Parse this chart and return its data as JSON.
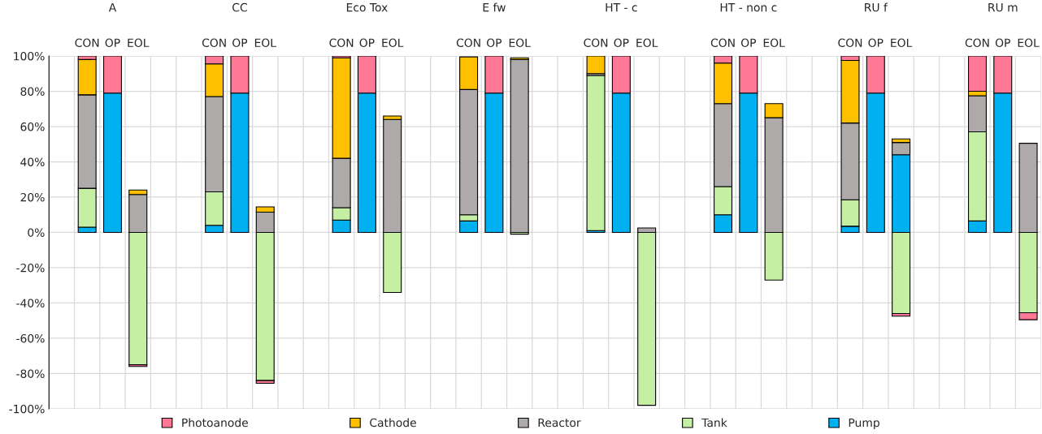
{
  "chart_data": {
    "type": "bar",
    "stacked": true,
    "categories": [
      null,
      "CON",
      "OP",
      "EOL",
      null,
      null,
      "CON",
      "OP",
      "EOL",
      null,
      null,
      "CON",
      "OP",
      "EOL",
      null,
      null,
      "CON",
      "OP",
      "EOL",
      null,
      null,
      "CON",
      "OP",
      "EOL",
      null,
      null,
      "CON",
      "OP",
      "EOL",
      null,
      null,
      "CON",
      "OP",
      "EOL",
      null,
      null,
      "CON",
      "OP",
      "EOL"
    ],
    "annotations": [
      "A",
      "CC",
      "Eco Tox",
      "E fw",
      "HT - c",
      "HT - non c",
      "RU f",
      "RU m"
    ],
    "ylim": [
      -100,
      100
    ],
    "yticks": [
      {
        "value": -100,
        "label": "-100%"
      },
      {
        "value": -80,
        "label": "-80%"
      },
      {
        "value": -60,
        "label": "-60%"
      },
      {
        "value": -40,
        "label": "-40%"
      },
      {
        "value": -20,
        "label": "-20%"
      },
      {
        "value": 0,
        "label": "0%"
      },
      {
        "value": 20,
        "label": "20%"
      },
      {
        "value": 40,
        "label": "40%"
      },
      {
        "value": 60,
        "label": "60%"
      },
      {
        "value": 80,
        "label": "80%"
      },
      {
        "value": 100,
        "label": "100%"
      }
    ],
    "grid": true,
    "legend": "bottom",
    "series": [
      {
        "name": "Pump",
        "color": "#00b0f0",
        "values": [
          null,
          3,
          79,
          null,
          null,
          null,
          4,
          79,
          null,
          null,
          null,
          7,
          79,
          null,
          null,
          null,
          6.5,
          79,
          null,
          null,
          null,
          1,
          79,
          null,
          null,
          null,
          10,
          79,
          null,
          null,
          null,
          3.5,
          79,
          44,
          null,
          null,
          6.5,
          79,
          null
        ]
      },
      {
        "name": "Tank",
        "color": "#c5f0a4",
        "values": [
          null,
          22,
          null,
          -75,
          null,
          null,
          19,
          null,
          -84,
          null,
          null,
          7,
          null,
          -34,
          null,
          null,
          3.5,
          null,
          -1,
          null,
          null,
          88,
          null,
          -98,
          null,
          null,
          16,
          null,
          -27,
          null,
          null,
          15,
          null,
          -46,
          null,
          null,
          50.5,
          null,
          -45.5
        ]
      },
      {
        "name": "Reactor",
        "color": "#aeaaaa",
        "values": [
          null,
          53,
          null,
          21.5,
          null,
          null,
          54,
          null,
          11.5,
          null,
          null,
          28,
          null,
          64,
          null,
          null,
          71,
          null,
          98,
          null,
          null,
          1,
          null,
          2.5,
          null,
          null,
          47,
          null,
          65,
          null,
          null,
          43.5,
          null,
          7,
          null,
          null,
          20.5,
          null,
          50.5
        ]
      },
      {
        "name": "Cathode",
        "color": "#ffc000",
        "values": [
          null,
          20,
          null,
          2.5,
          null,
          null,
          18.5,
          null,
          3,
          null,
          null,
          57,
          null,
          2,
          null,
          null,
          18.5,
          null,
          1,
          null,
          null,
          10,
          null,
          null,
          null,
          null,
          23,
          null,
          8,
          null,
          null,
          35.5,
          null,
          2,
          null,
          null,
          2.5,
          null,
          null
        ]
      },
      {
        "name": "Photoanode",
        "color": "#ff7896",
        "values": [
          null,
          2,
          21,
          -1,
          null,
          null,
          4.5,
          21,
          -1.5,
          null,
          null,
          1,
          21,
          null,
          null,
          null,
          null,
          21,
          null,
          null,
          null,
          null,
          21,
          null,
          null,
          null,
          4,
          21,
          null,
          null,
          null,
          2.5,
          21,
          -1.5,
          null,
          null,
          20,
          21,
          -4
        ]
      }
    ]
  }
}
